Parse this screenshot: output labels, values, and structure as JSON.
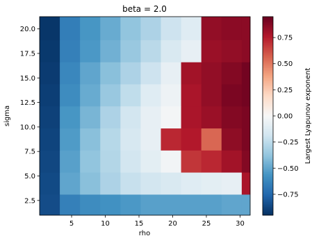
{
  "chart_data": {
    "type": "heatmap",
    "title": "beta = 2.0",
    "xlabel": "rho",
    "ylabel": "sigma",
    "colorbar_label": "Largest Lyapunov exponent",
    "colormap": "RdBu_r",
    "color_range": [
      -0.95,
      0.95
    ],
    "x_range": [
      0.25,
      31.5
    ],
    "y_range": [
      1,
      21.25
    ],
    "x_centers": [
      1.75,
      4.75,
      7.75,
      10.75,
      13.75,
      16.75,
      19.75,
      22.75,
      25.75,
      28.75,
      31.75
    ],
    "y_centers": [
      2,
      4.25,
      6.5,
      8.75,
      11,
      13.25,
      15.5,
      17.75,
      20
    ],
    "x_ticks": [
      {
        "value": 5,
        "label": "5"
      },
      {
        "value": 10,
        "label": "10"
      },
      {
        "value": 15,
        "label": "15"
      },
      {
        "value": 20,
        "label": "20"
      },
      {
        "value": 25,
        "label": "25"
      },
      {
        "value": 30,
        "label": "30"
      }
    ],
    "y_ticks": [
      {
        "value": 2.5,
        "label": "2.5"
      },
      {
        "value": 5.0,
        "label": "5.0"
      },
      {
        "value": 7.5,
        "label": "7.5"
      },
      {
        "value": 10.0,
        "label": "10.0"
      },
      {
        "value": 12.5,
        "label": "12.5"
      },
      {
        "value": 15.0,
        "label": "15.0"
      },
      {
        "value": 17.5,
        "label": "17.5"
      },
      {
        "value": 20.0,
        "label": "20.0"
      }
    ],
    "colorbar_ticks": [
      {
        "value": 0.75,
        "label": "0.75"
      },
      {
        "value": 0.5,
        "label": "0.50"
      },
      {
        "value": 0.25,
        "label": "0.25"
      },
      {
        "value": 0.0,
        "label": "0.00"
      },
      {
        "value": -0.25,
        "label": "−0.25"
      },
      {
        "value": -0.5,
        "label": "−0.50"
      },
      {
        "value": -0.75,
        "label": "−0.75"
      }
    ],
    "values": [
      [
        -0.85,
        -0.65,
        -0.6,
        -0.58,
        -0.55,
        -0.52,
        -0.52,
        -0.52,
        -0.52,
        -0.5,
        -0.5
      ],
      [
        -0.86,
        -0.5,
        -0.4,
        -0.3,
        -0.22,
        -0.18,
        -0.15,
        -0.12,
        -0.1,
        -0.08,
        0.78
      ],
      [
        -0.87,
        -0.52,
        -0.38,
        -0.28,
        -0.18,
        -0.1,
        -0.03,
        0.68,
        0.72,
        0.8,
        0.88
      ],
      [
        -0.88,
        -0.54,
        -0.4,
        -0.27,
        -0.16,
        -0.08,
        0.72,
        0.76,
        0.55,
        0.85,
        0.9
      ],
      [
        -0.89,
        -0.56,
        -0.44,
        -0.3,
        -0.18,
        -0.08,
        -0.02,
        0.78,
        0.82,
        0.88,
        0.9
      ],
      [
        -0.9,
        -0.6,
        -0.48,
        -0.36,
        -0.24,
        -0.12,
        -0.05,
        0.78,
        0.84,
        0.9,
        0.92
      ],
      [
        -0.91,
        -0.62,
        -0.5,
        -0.4,
        -0.3,
        -0.2,
        -0.08,
        0.8,
        0.84,
        0.88,
        0.92
      ],
      [
        -0.92,
        -0.65,
        -0.55,
        -0.46,
        -0.36,
        -0.26,
        -0.15,
        -0.08,
        0.82,
        0.84,
        0.86
      ],
      [
        -0.93,
        -0.66,
        -0.56,
        -0.48,
        -0.38,
        -0.3,
        -0.2,
        -0.12,
        0.84,
        0.86,
        0.86
      ]
    ]
  }
}
